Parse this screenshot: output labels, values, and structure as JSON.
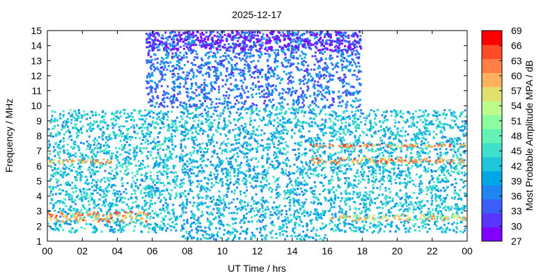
{
  "chart_data": {
    "type": "heatmap",
    "title": "2025-12-17",
    "xlabel": "UT Time / hrs",
    "ylabel": "Frequency / MHz",
    "colorbar_label": "Most Probable Amplitude MPA / dB",
    "xlim": [
      0,
      24
    ],
    "ylim": [
      1,
      15
    ],
    "x_ticks": [
      "00",
      "02",
      "04",
      "06",
      "08",
      "10",
      "12",
      "14",
      "16",
      "18",
      "20",
      "22",
      "00"
    ],
    "y_ticks": [
      "1",
      "2",
      "3",
      "4",
      "5",
      "6",
      "7",
      "8",
      "9",
      "10",
      "11",
      "12",
      "13",
      "14",
      "15"
    ],
    "colorbar_range": [
      27,
      69
    ],
    "colorbar_ticks": [
      "27",
      "30",
      "33",
      "36",
      "39",
      "42",
      "45",
      "48",
      "51",
      "54",
      "57",
      "60",
      "63",
      "66",
      "69"
    ],
    "colorbar_colors": [
      "#7f00ff",
      "#5a35fd",
      "#3c5ef8",
      "#1f86f0",
      "#02a8e6",
      "#1dc6d9",
      "#3fe0cb",
      "#64f2b7",
      "#8cfda0",
      "#bdfb8a",
      "#dfe06e",
      "#ffb15e",
      "#ff7f46",
      "#ff4b26",
      "#ff0000"
    ],
    "series": [
      {
        "x": [
          0,
          7.5
        ],
        "y": [
          1.5,
          9.8
        ],
        "value": 42
      },
      {
        "x": [
          5.6,
          18
        ],
        "y": [
          9.8,
          15
        ],
        "value": 36
      },
      {
        "x": [
          5.6,
          18
        ],
        "y": [
          13.6,
          15
        ],
        "value": 29
      },
      {
        "x": [
          7.5,
          16
        ],
        "y": [
          1,
          10
        ],
        "value": 41
      },
      {
        "x": [
          16,
          24
        ],
        "y": [
          1.5,
          9.8
        ],
        "value": 42
      },
      {
        "x": [
          0,
          6
        ],
        "y": [
          2.2,
          3
        ],
        "value": 60
      },
      {
        "x": [
          0,
          4
        ],
        "y": [
          6.1,
          6.5
        ],
        "value": 58
      },
      {
        "x": [
          15,
          24
        ],
        "y": [
          6.1,
          6.6
        ],
        "value": 60
      },
      {
        "x": [
          15,
          24
        ],
        "y": [
          7.2,
          7.5
        ],
        "value": 61
      },
      {
        "x": [
          16,
          24
        ],
        "y": [
          2.3,
          2.8
        ],
        "value": 57
      }
    ]
  }
}
